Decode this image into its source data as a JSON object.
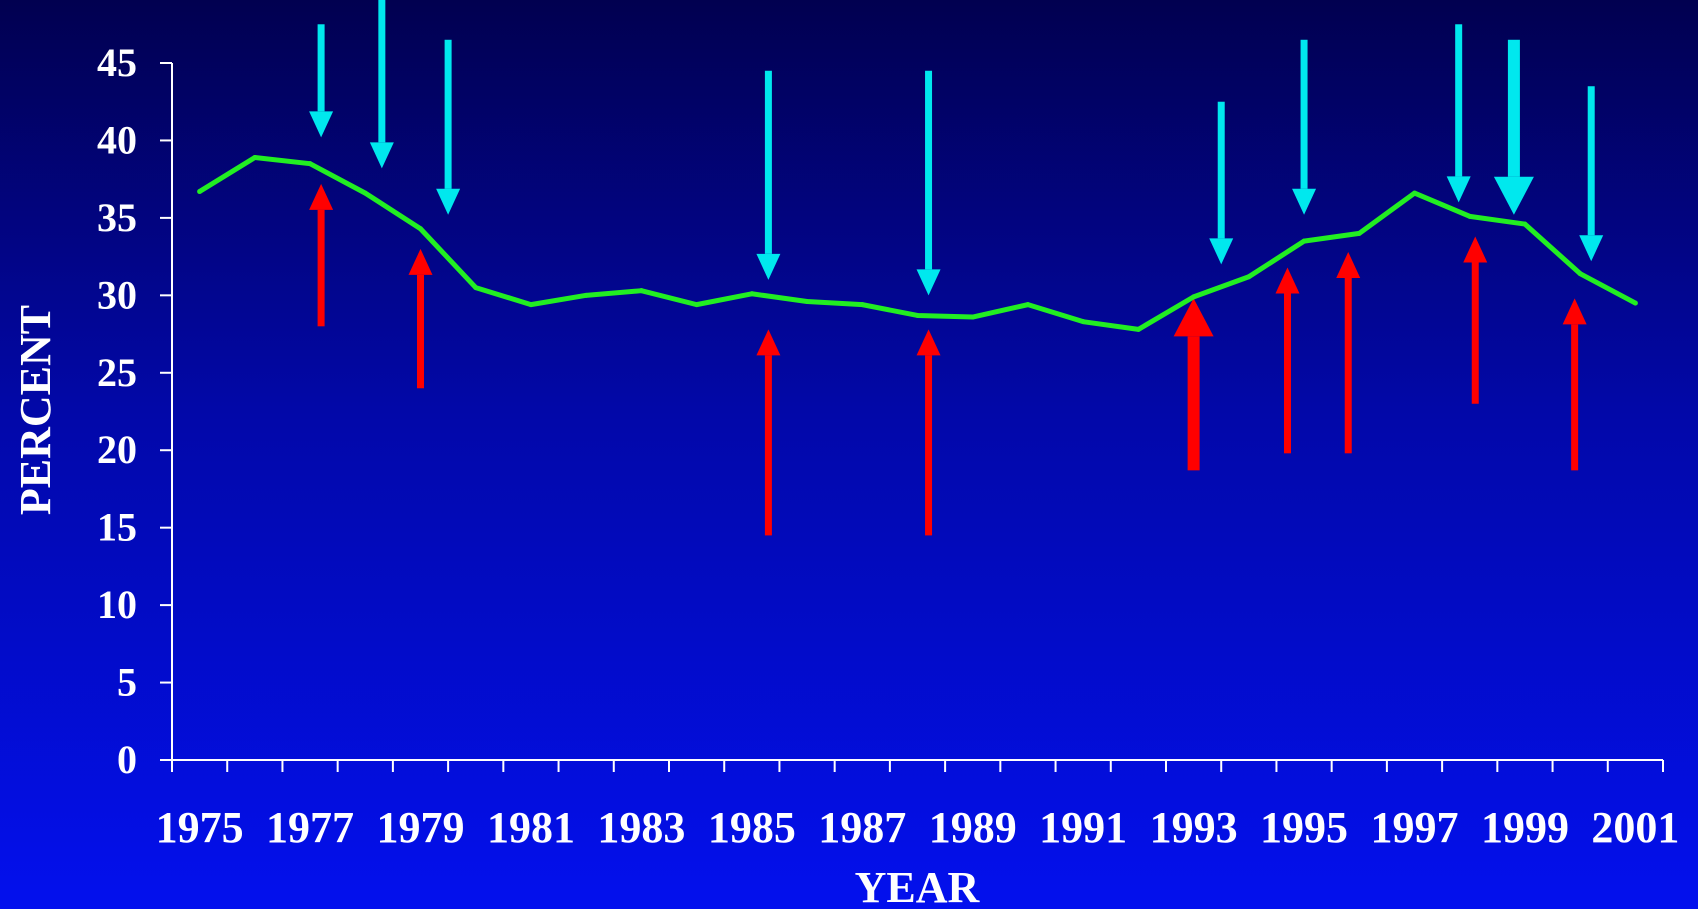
{
  "chart_data": {
    "type": "line",
    "xlabel": "YEAR",
    "ylabel": "PERCENT",
    "ylim": [
      0,
      45
    ],
    "xlim": [
      1975,
      2001
    ],
    "yticks": [
      0,
      5,
      10,
      15,
      20,
      25,
      30,
      35,
      40,
      45
    ],
    "xtick_labels": [
      "1975",
      "1977",
      "1979",
      "1981",
      "1983",
      "1985",
      "1987",
      "1989",
      "1991",
      "1993",
      "1995",
      "1997",
      "1999",
      "2001"
    ],
    "grid": false,
    "legend": "none",
    "series": [
      {
        "color": "#22ee22",
        "x": [
          1975,
          1976,
          1977,
          1978,
          1979,
          1980,
          1981,
          1982,
          1983,
          1984,
          1985,
          1986,
          1987,
          1988,
          1989,
          1990,
          1991,
          1992,
          1993,
          1994,
          1995,
          1996,
          1997,
          1998,
          1999,
          2000,
          2001
        ],
        "y": [
          36.7,
          38.9,
          38.5,
          36.6,
          34.3,
          30.5,
          29.4,
          30.0,
          30.3,
          29.4,
          30.1,
          29.6,
          29.4,
          28.7,
          28.6,
          29.4,
          28.3,
          27.8,
          29.9,
          31.2,
          33.5,
          34.0,
          36.6,
          35.1,
          34.6,
          31.4,
          29.5
        ]
      }
    ],
    "annotations": {
      "down_arrows": [
        {
          "x": 1977.2,
          "from": 47.5,
          "to": 40.2,
          "thick": false
        },
        {
          "x": 1978.3,
          "from": 49.5,
          "to": 38.2,
          "thick": false
        },
        {
          "x": 1979.5,
          "from": 46.5,
          "to": 35.2,
          "thick": false
        },
        {
          "x": 1985.3,
          "from": 44.5,
          "to": 31.0,
          "thick": false
        },
        {
          "x": 1988.2,
          "from": 44.5,
          "to": 30.0,
          "thick": false
        },
        {
          "x": 1993.5,
          "from": 42.5,
          "to": 32.0,
          "thick": false
        },
        {
          "x": 1995.0,
          "from": 46.5,
          "to": 35.2,
          "thick": false
        },
        {
          "x": 1997.8,
          "from": 47.5,
          "to": 36.0,
          "thick": false
        },
        {
          "x": 1998.8,
          "from": 46.5,
          "to": 35.2,
          "thick": true
        },
        {
          "x": 2000.2,
          "from": 43.5,
          "to": 32.2,
          "thick": false
        }
      ],
      "up_arrows": [
        {
          "x": 1977.2,
          "from": 28.0,
          "to": 37.2,
          "thick": false
        },
        {
          "x": 1979.0,
          "from": 24.0,
          "to": 33.0,
          "thick": false
        },
        {
          "x": 1985.3,
          "from": 14.5,
          "to": 27.8,
          "thick": false
        },
        {
          "x": 1988.2,
          "from": 14.5,
          "to": 27.8,
          "thick": false
        },
        {
          "x": 1993.0,
          "from": 18.7,
          "to": 29.8,
          "thick": true
        },
        {
          "x": 1994.7,
          "from": 19.8,
          "to": 31.8,
          "thick": false
        },
        {
          "x": 1995.8,
          "from": 19.8,
          "to": 32.8,
          "thick": false
        },
        {
          "x": 1998.1,
          "from": 23.0,
          "to": 33.8,
          "thick": false
        },
        {
          "x": 1999.9,
          "from": 18.7,
          "to": 29.8,
          "thick": false
        }
      ],
      "down_color": "#00e8ee",
      "up_color": "#ff0000"
    }
  }
}
